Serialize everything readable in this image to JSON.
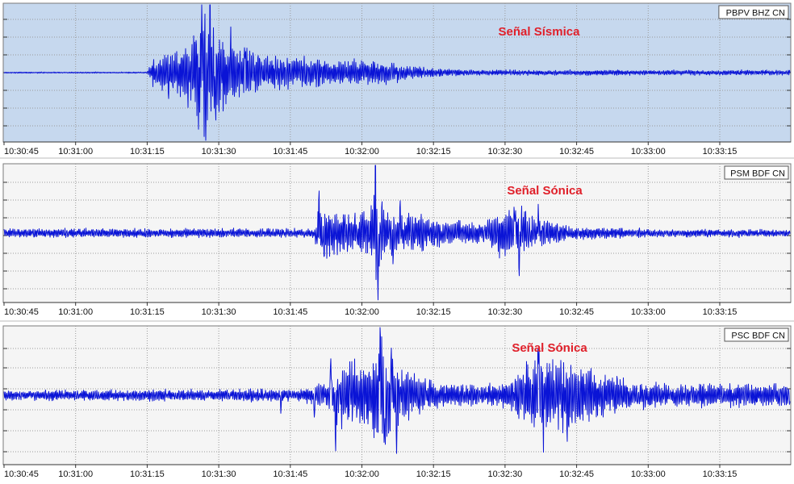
{
  "colors": {
    "trace": "#0a14d6",
    "annotation": "#e0202a",
    "panel_active_bg": "#c6d8ee",
    "panel_bg": "#f5f5f5",
    "grid": "#9a9a9a",
    "frame": "#7a7a7a"
  },
  "time_axis": {
    "ticks": [
      "10:30:45",
      "10:31:00",
      "10:31:15",
      "10:31:30",
      "10:31:45",
      "10:32:00",
      "10:32:15",
      "10:32:30",
      "10:32:45",
      "10:33:00",
      "10:33:15"
    ]
  },
  "chart_data": [
    {
      "type": "line",
      "station": "PBPV BHZ CN",
      "annotation": "Señal Sísmica",
      "active": true,
      "grid": true,
      "envelope": [
        [
          0,
          0.01
        ],
        [
          30,
          0.01
        ],
        [
          31,
          0.22
        ],
        [
          33,
          0.3
        ],
        [
          35,
          0.35
        ],
        [
          38,
          0.5
        ],
        [
          40,
          0.68
        ],
        [
          42,
          1.0
        ],
        [
          44,
          0.72
        ],
        [
          46,
          0.6
        ],
        [
          49,
          0.42
        ],
        [
          52,
          0.32
        ],
        [
          58,
          0.26
        ],
        [
          66,
          0.22
        ],
        [
          75,
          0.2
        ],
        [
          80,
          0.18
        ],
        [
          85,
          0.1
        ],
        [
          95,
          0.05
        ],
        [
          100,
          0.04
        ]
      ],
      "spikes": [
        [
          34.5,
          -0.45
        ],
        [
          41.5,
          0.95
        ],
        [
          42.3,
          -1.0
        ],
        [
          43.2,
          0.8
        ],
        [
          40.8,
          -0.8
        ],
        [
          44.3,
          -0.65
        ],
        [
          47.5,
          0.55
        ],
        [
          50.5,
          0.5
        ]
      ]
    },
    {
      "type": "line",
      "station": "PSM BDF CN",
      "annotation": "Señal Sónica",
      "active": false,
      "grid": true,
      "envelope": [
        [
          0,
          0.07
        ],
        [
          65,
          0.07
        ],
        [
          66,
          0.45
        ],
        [
          68,
          0.38
        ],
        [
          72,
          0.3
        ],
        [
          76,
          0.35
        ],
        [
          78,
          0.8
        ],
        [
          80,
          0.35
        ],
        [
          85,
          0.3
        ],
        [
          95,
          0.2
        ],
        [
          100,
          0.14
        ],
        [
          106,
          0.5
        ],
        [
          112,
          0.22
        ],
        [
          120,
          0.1
        ],
        [
          130,
          0.08
        ],
        [
          136,
          0.06
        ]
      ],
      "spikes": [
        [
          66,
          0.62
        ],
        [
          67,
          -0.52
        ],
        [
          77.8,
          1.0
        ],
        [
          78.4,
          -1.0
        ],
        [
          81.5,
          -0.5
        ],
        [
          83,
          0.45
        ],
        [
          107,
          0.45
        ],
        [
          108,
          -0.72
        ],
        [
          112,
          0.42
        ]
      ]
    },
    {
      "type": "line",
      "station": "PSC BDF CN",
      "annotation": "Señal Sónica",
      "active": false,
      "grid": true,
      "envelope": [
        [
          0,
          0.08
        ],
        [
          62,
          0.1
        ],
        [
          68,
          0.22
        ],
        [
          70,
          0.45
        ],
        [
          72,
          0.55
        ],
        [
          75,
          0.55
        ],
        [
          77,
          0.6
        ],
        [
          79,
          0.95
        ],
        [
          81,
          0.6
        ],
        [
          84,
          0.42
        ],
        [
          87,
          0.3
        ],
        [
          92,
          0.18
        ],
        [
          100,
          0.15
        ],
        [
          106,
          0.25
        ],
        [
          110,
          0.55
        ],
        [
          114,
          0.65
        ],
        [
          118,
          0.55
        ],
        [
          122,
          0.45
        ],
        [
          128,
          0.3
        ],
        [
          136,
          0.18
        ]
      ],
      "spikes": [
        [
          58,
          -0.28
        ],
        [
          65,
          -0.38
        ],
        [
          68.5,
          0.7
        ],
        [
          69.5,
          -0.85
        ],
        [
          78.8,
          1.0
        ],
        [
          79.8,
          -0.92
        ],
        [
          81.2,
          0.82
        ],
        [
          82.3,
          -0.7
        ],
        [
          112,
          0.95
        ],
        [
          113,
          -0.72
        ],
        [
          118,
          -0.55
        ]
      ]
    }
  ]
}
